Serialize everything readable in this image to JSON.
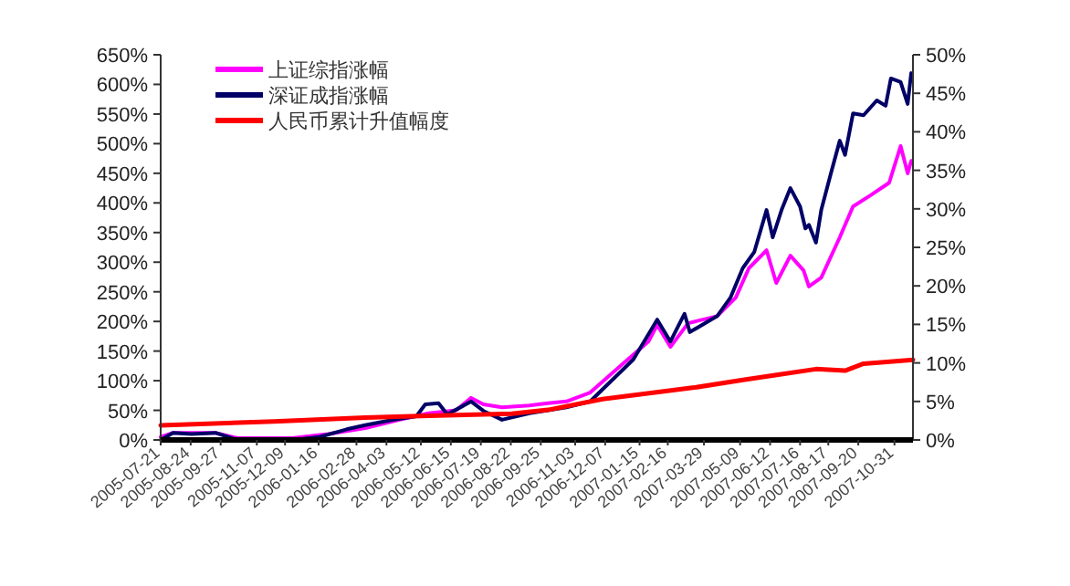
{
  "chart_data": {
    "type": "line",
    "legend": "top left",
    "grid": false,
    "xlim": [
      "2005-07-21",
      "2007-11-21"
    ],
    "xticks": [
      "2005-07-21",
      "2005-08-24",
      "2005-09-27",
      "2005-11-07",
      "2005-12-09",
      "2006-01-16",
      "2006-02-28",
      "2006-04-03",
      "2006-05-12",
      "2006-06-15",
      "2006-07-19",
      "2006-08-22",
      "2006-09-25",
      "2006-11-03",
      "2006-12-07",
      "2007-01-15",
      "2007-02-16",
      "2007-03-29",
      "2007-05-09",
      "2007-06-12",
      "2007-07-16",
      "2007-08-17",
      "2007-09-20",
      "2007-10-31"
    ],
    "ylim": [
      0,
      650
    ],
    "yticks": [
      {
        "value": 0,
        "label": "0%"
      },
      {
        "value": 50,
        "label": "50%"
      },
      {
        "value": 100,
        "label": "100%"
      },
      {
        "value": 150,
        "label": "150%"
      },
      {
        "value": 200,
        "label": "200%"
      },
      {
        "value": 250,
        "label": "250%"
      },
      {
        "value": 300,
        "label": "300%"
      },
      {
        "value": 350,
        "label": "350%"
      },
      {
        "value": 400,
        "label": "400%"
      },
      {
        "value": 450,
        "label": "450%"
      },
      {
        "value": 500,
        "label": "500%"
      },
      {
        "value": 550,
        "label": "550%"
      },
      {
        "value": 600,
        "label": "600%"
      },
      {
        "value": 650,
        "label": "650%"
      }
    ],
    "y2lim": [
      0,
      50
    ],
    "y2ticks": [
      {
        "value": 0,
        "label": "0%"
      },
      {
        "value": 5,
        "label": "5%"
      },
      {
        "value": 10,
        "label": "10%"
      },
      {
        "value": 15,
        "label": "15%"
      },
      {
        "value": 20,
        "label": "20%"
      },
      {
        "value": 25,
        "label": "25%"
      },
      {
        "value": 30,
        "label": "30%"
      },
      {
        "value": 35,
        "label": "35%"
      },
      {
        "value": 40,
        "label": "40%"
      },
      {
        "value": 45,
        "label": "45%"
      },
      {
        "value": 50,
        "label": "50%"
      }
    ],
    "series": [
      {
        "name": "上证综指涨幅",
        "color": "#ff00ff",
        "x": [
          "2005-07-21",
          "2005-08-04",
          "2005-08-25",
          "2005-09-21",
          "2005-10-16",
          "2005-12-17",
          "2006-01-27",
          "2006-03-10",
          "2006-04-20",
          "2006-05-21",
          "2006-06-21",
          "2006-07-08",
          "2006-07-22",
          "2006-08-12",
          "2006-09-12",
          "2006-10-03",
          "2006-10-24",
          "2006-11-20",
          "2006-12-25",
          "2007-01-25",
          "2007-02-04",
          "2007-02-19",
          "2007-03-11",
          "2007-04-13",
          "2007-05-04",
          "2007-05-19",
          "2007-06-08",
          "2007-06-19",
          "2007-07-05",
          "2007-07-20",
          "2007-07-26",
          "2007-08-09",
          "2007-08-30",
          "2007-09-14",
          "2007-10-04",
          "2007-10-25",
          "2007-11-07",
          "2007-11-15",
          "2007-11-19"
        ],
        "values": [
          5,
          12,
          12,
          12,
          3,
          3,
          10,
          20,
          35,
          45,
          50,
          71,
          60,
          55,
          58,
          62,
          65,
          80,
          126,
          166,
          194,
          157,
          197,
          209,
          240,
          290,
          320,
          265,
          311,
          286,
          259,
          274,
          342,
          394,
          413,
          434,
          496,
          450,
          471
        ]
      },
      {
        "name": "深证成指涨幅",
        "color": "#000066",
        "x": [
          "2005-07-21",
          "2005-08-04",
          "2005-08-25",
          "2005-09-21",
          "2005-10-16",
          "2005-12-17",
          "2006-01-17",
          "2006-02-17",
          "2006-03-10",
          "2006-04-10",
          "2006-05-07",
          "2006-05-17",
          "2006-06-01",
          "2006-06-11",
          "2006-07-08",
          "2006-07-22",
          "2006-08-12",
          "2006-09-12",
          "2006-10-03",
          "2006-10-24",
          "2006-11-20",
          "2007-01-08",
          "2007-02-04",
          "2007-02-19",
          "2007-03-07",
          "2007-03-13",
          "2007-04-13",
          "2007-04-28",
          "2007-05-12",
          "2007-05-25",
          "2007-06-08",
          "2007-06-15",
          "2007-06-25",
          "2007-07-05",
          "2007-07-16",
          "2007-07-22",
          "2007-07-26",
          "2007-08-03",
          "2007-08-09",
          "2007-08-20",
          "2007-08-30",
          "2007-09-05",
          "2007-09-14",
          "2007-09-26",
          "2007-10-11",
          "2007-10-21",
          "2007-10-27",
          "2007-11-07",
          "2007-11-15",
          "2007-11-19"
        ],
        "values": [
          0,
          12,
          10,
          12,
          0,
          0,
          5,
          18,
          25,
          34,
          40,
          60,
          62,
          43,
          65,
          49,
          34,
          45,
          50,
          55,
          65,
          136,
          203,
          166,
          213,
          182,
          209,
          240,
          290,
          317,
          388,
          342,
          388,
          425,
          394,
          357,
          363,
          333,
          388,
          450,
          505,
          481,
          551,
          548,
          573,
          564,
          610,
          604,
          567,
          619
        ]
      },
      {
        "name": "人民币累计升值幅度",
        "color": "#ff0000",
        "axis": "y2",
        "x": [
          "2005-07-21",
          "2005-11-26",
          "2006-03-10",
          "2006-05-11",
          "2006-07-12",
          "2006-08-23",
          "2006-10-03",
          "2006-12-04",
          "2007-03-18",
          "2007-05-12",
          "2007-06-23",
          "2007-08-03",
          "2007-09-05",
          "2007-09-26",
          "2007-11-21"
        ],
        "values": [
          1.9,
          2.4,
          2.9,
          3.1,
          3.3,
          3.4,
          3.9,
          5.3,
          6.8,
          7.8,
          8.5,
          9.2,
          9.0,
          9.9,
          10.4
        ]
      }
    ]
  }
}
